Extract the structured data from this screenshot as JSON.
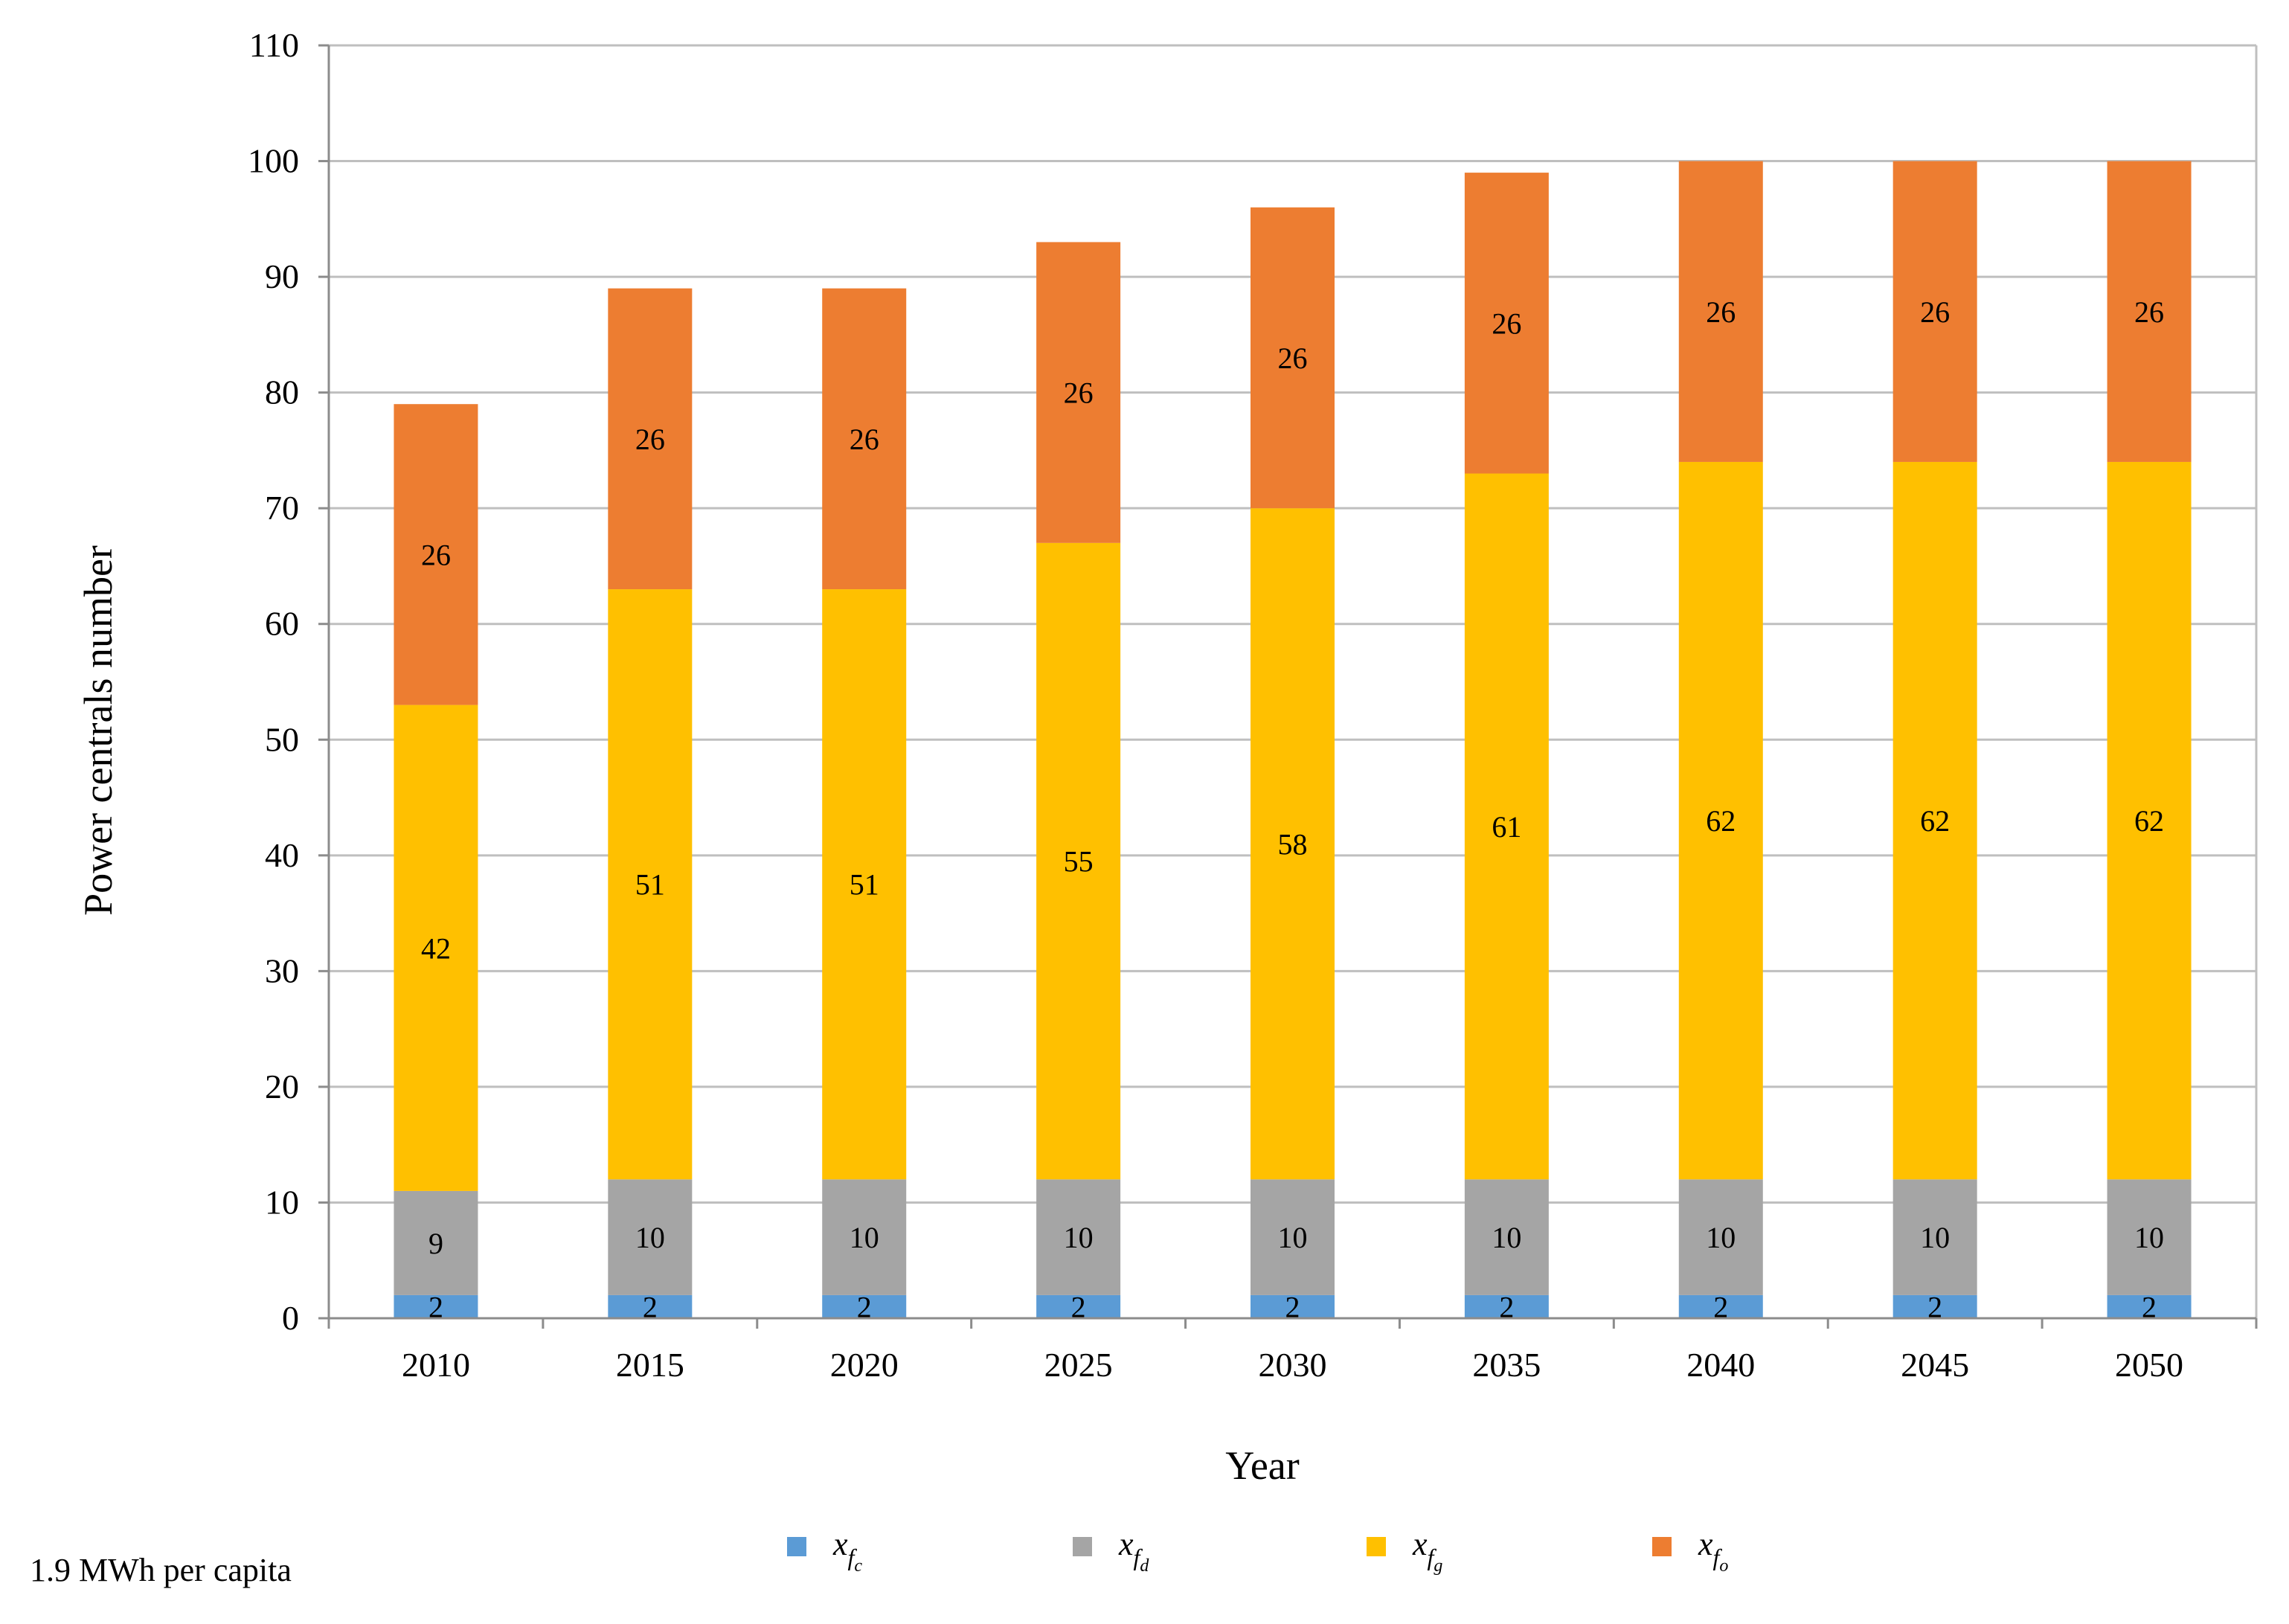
{
  "chart_data": {
    "type": "bar",
    "stacked": true,
    "categories": [
      "2010",
      "2015",
      "2020",
      "2025",
      "2030",
      "2035",
      "2040",
      "2045",
      "2050"
    ],
    "series": [
      {
        "name": "x_fc",
        "label": "x",
        "sub": "f",
        "subsub": "c",
        "color": "#5b9bd5",
        "values": [
          2,
          2,
          2,
          2,
          2,
          2,
          2,
          2,
          2
        ]
      },
      {
        "name": "x_fd",
        "label": "x",
        "sub": "f",
        "subsub": "d",
        "color": "#a5a5a5",
        "values": [
          9,
          10,
          10,
          10,
          10,
          10,
          10,
          10,
          10
        ]
      },
      {
        "name": "x_fg",
        "label": "x",
        "sub": "f",
        "subsub": "g",
        "color": "#ffc000",
        "values": [
          42,
          51,
          51,
          55,
          58,
          61,
          62,
          62,
          62
        ]
      },
      {
        "name": "x_fo",
        "label": "x",
        "sub": "f",
        "subsub": "o",
        "color": "#ed7d31",
        "values": [
          26,
          26,
          26,
          26,
          26,
          26,
          26,
          26,
          26
        ]
      }
    ],
    "data_labels": {
      "x_fc": [
        "2",
        "2",
        "2",
        "2",
        "2",
        "2",
        "2",
        "2",
        "2"
      ],
      "x_fd": [
        "9",
        "10",
        "10",
        "10",
        "10",
        "10",
        "10",
        "10",
        "10"
      ],
      "x_fg": [
        "42",
        "51",
        "51",
        "55",
        "58",
        "61",
        "62",
        "62",
        "62"
      ],
      "x_fo": [
        "26",
        "26",
        "26",
        "26",
        "26",
        "26",
        "26",
        "26",
        "26"
      ]
    },
    "title": "",
    "xlabel": "Year",
    "ylabel": "Power centrals number",
    "ylim": [
      0,
      110
    ],
    "yticks": [
      0,
      10,
      20,
      30,
      40,
      50,
      60,
      70,
      80,
      90,
      100,
      110
    ],
    "grid": true,
    "legend_position": "bottom"
  },
  "note": "1.9 MWh per capita"
}
